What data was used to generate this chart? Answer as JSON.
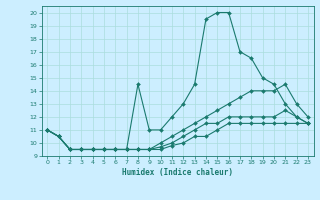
{
  "title": "",
  "xlabel": "Humidex (Indice chaleur)",
  "bg_color": "#cceeff",
  "line_color": "#1a7a6e",
  "grid_color": "#aadddd",
  "xlim": [
    -0.5,
    23.5
  ],
  "ylim": [
    9,
    20.5
  ],
  "xticks": [
    0,
    1,
    2,
    3,
    4,
    5,
    6,
    7,
    8,
    9,
    10,
    11,
    12,
    13,
    14,
    15,
    16,
    17,
    18,
    19,
    20,
    21,
    22,
    23
  ],
  "yticks": [
    9,
    10,
    11,
    12,
    13,
    14,
    15,
    16,
    17,
    18,
    19,
    20
  ],
  "line1_x": [
    0,
    1,
    2,
    3,
    4,
    5,
    6,
    7,
    8,
    9,
    10,
    11,
    12,
    13,
    14,
    15,
    16,
    17,
    18,
    19,
    20,
    21,
    22,
    23
  ],
  "line1_y": [
    11,
    10.5,
    9.5,
    9.5,
    9.5,
    9.5,
    9.5,
    9.5,
    14.5,
    11,
    11,
    12,
    13,
    14.5,
    19.5,
    20,
    20,
    17,
    16.5,
    15,
    14.5,
    13,
    12,
    11.5
  ],
  "line2_x": [
    0,
    1,
    2,
    3,
    4,
    5,
    6,
    7,
    8,
    9,
    10,
    11,
    12,
    13,
    14,
    15,
    16,
    17,
    18,
    19,
    20,
    21,
    22,
    23
  ],
  "line2_y": [
    11,
    10.5,
    9.5,
    9.5,
    9.5,
    9.5,
    9.5,
    9.5,
    9.5,
    9.5,
    10,
    10.5,
    11,
    11.5,
    12,
    12.5,
    13,
    13.5,
    14,
    14,
    14,
    14.5,
    13,
    12
  ],
  "line3_x": [
    0,
    1,
    2,
    3,
    4,
    5,
    6,
    7,
    8,
    9,
    10,
    11,
    12,
    13,
    14,
    15,
    16,
    17,
    18,
    19,
    20,
    21,
    22,
    23
  ],
  "line3_y": [
    11,
    10.5,
    9.5,
    9.5,
    9.5,
    9.5,
    9.5,
    9.5,
    9.5,
    9.5,
    9.7,
    10,
    10.5,
    11,
    11.5,
    11.5,
    12,
    12,
    12,
    12,
    12,
    12.5,
    12,
    11.5
  ],
  "line4_x": [
    0,
    1,
    2,
    3,
    4,
    5,
    6,
    7,
    8,
    9,
    10,
    11,
    12,
    13,
    14,
    15,
    16,
    17,
    18,
    19,
    20,
    21,
    22,
    23
  ],
  "line4_y": [
    11,
    10.5,
    9.5,
    9.5,
    9.5,
    9.5,
    9.5,
    9.5,
    9.5,
    9.5,
    9.5,
    9.8,
    10,
    10.5,
    10.5,
    11,
    11.5,
    11.5,
    11.5,
    11.5,
    11.5,
    11.5,
    11.5,
    11.5
  ]
}
